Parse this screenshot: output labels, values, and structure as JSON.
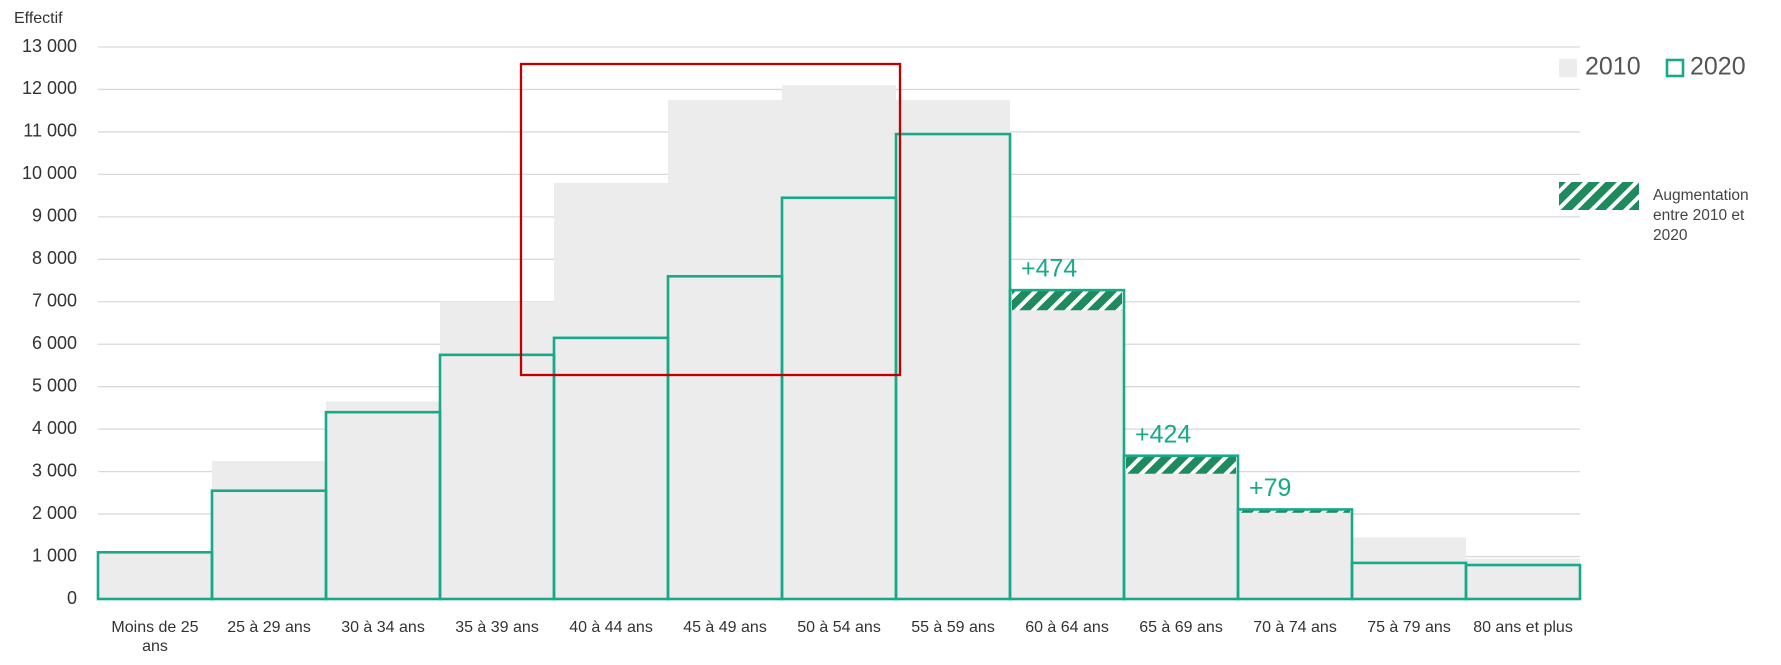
{
  "chart_data": {
    "type": "bar",
    "y_label": "Effectif",
    "categories": [
      "Moins de 25 ans",
      "25 à 29 ans",
      "30 à 34 ans",
      "35 à 39 ans",
      "40 à 44 ans",
      "45 à 49 ans",
      "50 à 54 ans",
      "55 à 59 ans",
      "60 à 64 ans",
      "65 à 69 ans",
      "70 à 74 ans",
      "75 à 79 ans",
      "80 ans et plus"
    ],
    "series": [
      {
        "name": "2010",
        "color": "#ececec",
        "values": [
          1100,
          3250,
          4650,
          7000,
          9800,
          11750,
          12100,
          11750,
          6800,
          2950,
          2030,
          1450,
          950
        ]
      },
      {
        "name": "2020",
        "color": "#17a98a",
        "values": [
          1100,
          2550,
          4400,
          5750,
          6150,
          7600,
          9450,
          10950,
          7274,
          3374,
          2109,
          850,
          800
        ]
      }
    ],
    "increase_color": "#1e8a5e",
    "increase_legend": "Augmentation entre 2010 et 2020",
    "annotations": [
      {
        "category": "60 à 64 ans",
        "text": "+474"
      },
      {
        "category": "65 à 69 ans",
        "text": "+424"
      },
      {
        "category": "70 à 74 ans",
        "text": "+79"
      }
    ],
    "ylim": [
      0,
      13000
    ],
    "yticks": [
      0,
      {
        "value": 1000,
        "label": "1 000"
      },
      {
        "value": 2000,
        "label": "2 000"
      },
      {
        "value": 3000,
        "label": "3 000"
      },
      {
        "value": 4000,
        "label": "4 000"
      },
      {
        "value": 5000,
        "label": "5 000"
      },
      {
        "value": 6000,
        "label": "6 000"
      },
      {
        "value": 7000,
        "label": "7 000"
      },
      {
        "value": 8000,
        "label": "8 000"
      },
      {
        "value": 9000,
        "label": "9 000"
      },
      {
        "value": 10000,
        "label": "10 000"
      },
      {
        "value": 11000,
        "label": "11 000"
      },
      {
        "value": 12000,
        "label": "12 000"
      },
      {
        "value": 13000,
        "label": "13 000"
      }
    ],
    "grid": true
  }
}
